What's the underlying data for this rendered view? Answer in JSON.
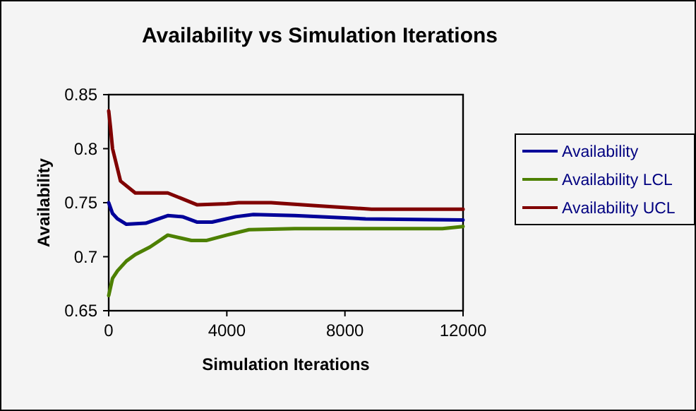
{
  "chart_data": {
    "type": "line",
    "title": "Availability vs Simulation Iterations",
    "xlabel": "Simulation Iterations",
    "ylabel": "Availability",
    "xlim": [
      0,
      12000
    ],
    "xticks": [
      0,
      4000,
      8000,
      12000
    ],
    "ylim": [
      0.65,
      0.85
    ],
    "yticks": [
      0.65,
      0.7,
      0.75,
      0.8,
      0.85
    ],
    "legend": "right",
    "grid": false,
    "marker": "none",
    "line_style": "solid",
    "series": [
      {
        "name": "Availability",
        "color": "#000099",
        "x": [
          0,
          130,
          300,
          600,
          1250,
          2000,
          2500,
          3000,
          3500,
          4300,
          4900,
          6300,
          8700,
          12000
        ],
        "values": [
          0.75,
          0.74,
          0.735,
          0.73,
          0.731,
          0.738,
          0.737,
          0.732,
          0.732,
          0.737,
          0.739,
          0.738,
          0.735,
          0.734
        ]
      },
      {
        "name": "Availability LCL",
        "color": "#4d8000",
        "x": [
          0,
          130,
          300,
          600,
          900,
          1400,
          2000,
          2800,
          3300,
          4000,
          4750,
          6300,
          11300,
          12000
        ],
        "values": [
          0.664,
          0.68,
          0.687,
          0.696,
          0.702,
          0.709,
          0.72,
          0.715,
          0.715,
          0.72,
          0.725,
          0.726,
          0.726,
          0.728
        ]
      },
      {
        "name": "Availability UCL",
        "color": "#800000",
        "x": [
          0,
          60,
          130,
          400,
          900,
          2000,
          3000,
          4000,
          4400,
          5500,
          7100,
          8900,
          12000
        ],
        "values": [
          0.835,
          0.82,
          0.8,
          0.77,
          0.759,
          0.759,
          0.748,
          0.749,
          0.75,
          0.75,
          0.747,
          0.744,
          0.744
        ]
      }
    ]
  }
}
